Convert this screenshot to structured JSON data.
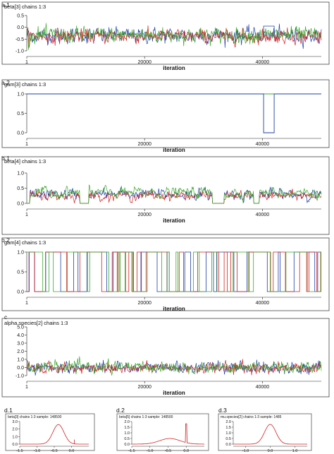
{
  "chart_data": [
    {
      "panel": "a.1",
      "type": "line",
      "title": "beta[3] chains 1:3",
      "xlabel": "iteration",
      "xlim": [
        0,
        50000
      ],
      "x_ticks": [
        1,
        20000,
        40000
      ],
      "ylim": [
        -1.0,
        0.5
      ],
      "y_ticks": [
        0.5,
        0.0,
        -0.5,
        -1.0
      ],
      "y_tick_labels": [
        "0.5",
        "0.0",
        "-0.5",
        "-1.0"
      ],
      "series": [
        {
          "color": "#1f3fa8",
          "center": -0.35,
          "spread": 0.22
        },
        {
          "color": "#d42020",
          "center": -0.38,
          "spread": 0.2
        },
        {
          "color": "#3aa82a",
          "center": -0.33,
          "spread": 0.22
        }
      ]
    },
    {
      "panel": "a.2",
      "type": "line",
      "title": "gam[3] chains 1:3",
      "xlabel": "iteration",
      "xlim": [
        0,
        50000
      ],
      "x_ticks": [
        1,
        20000,
        40000
      ],
      "ylim": [
        0.0,
        1.0
      ],
      "y_ticks": [
        1.0,
        0.5,
        0.0
      ],
      "y_tick_labels": [
        "1.0",
        "0.5",
        "0.0"
      ],
      "series": [
        {
          "color": "#3aa82a",
          "description": "constant at 1",
          "segments": [
            [
              1,
              50000,
              1
            ]
          ]
        },
        {
          "color": "#1f3fa8",
          "description": "mostly 1, drops to 0 briefly",
          "segments": [
            [
              1,
              40200,
              1
            ],
            [
              40200,
              42000,
              0
            ],
            [
              42000,
              50000,
              1
            ]
          ]
        }
      ]
    },
    {
      "panel": "b.1",
      "type": "line",
      "title": "beta[4] chains 1:3",
      "xlabel": "iteration",
      "xlim": [
        0,
        50000
      ],
      "x_ticks": [
        1,
        20000,
        40000
      ],
      "ylim": [
        0.0,
        1.0
      ],
      "y_ticks": [
        1.0,
        0.5,
        0.0
      ],
      "y_tick_labels": [
        "1.0",
        "0.5",
        "0.0"
      ],
      "active_ranges": [
        [
          500,
          9000
        ],
        [
          10500,
          31500
        ],
        [
          33500,
          38500
        ],
        [
          39500,
          50000
        ]
      ],
      "series": [
        {
          "color": "#1f3fa8",
          "center": 0.3,
          "spread": 0.18
        },
        {
          "color": "#d42020",
          "center": 0.25,
          "spread": 0.15
        },
        {
          "color": "#3aa82a",
          "center": 0.35,
          "spread": 0.18
        }
      ]
    },
    {
      "panel": "b.2",
      "type": "line",
      "title": "gam[4] chains 1:3",
      "xlabel": "iteration",
      "xlim": [
        0,
        50000
      ],
      "x_ticks": [
        1,
        20000,
        40000
      ],
      "ylim": [
        0.0,
        1.0
      ],
      "y_ticks": [
        1.0,
        0.5,
        0.0
      ],
      "y_tick_labels": [
        "1.0",
        "0.5",
        "0.0"
      ],
      "series": [
        {
          "color": "#1f3fa8"
        },
        {
          "color": "#d42020"
        },
        {
          "color": "#3aa82a"
        }
      ]
    },
    {
      "panel": "c",
      "type": "line",
      "title": "alpha.species[2] chains 1:3",
      "xlabel": "iteration",
      "xlim": [
        0,
        50000
      ],
      "x_ticks": [
        1,
        20000,
        40000
      ],
      "ylim": [
        -1.0,
        5.0
      ],
      "y_ticks": [
        5.0,
        4.0,
        3.0,
        2.0,
        1.0,
        0.0,
        -1.0
      ],
      "y_tick_labels": [
        "5.0",
        "4.0",
        "3.0",
        "2.0",
        "1.0",
        "0.0",
        "-1.0"
      ],
      "series": [
        {
          "color": "#1f3fa8",
          "center": 0.0,
          "spread": 0.45
        },
        {
          "color": "#d42020",
          "center": -0.05,
          "spread": 0.45
        },
        {
          "color": "#3aa82a",
          "center": 0.05,
          "spread": 0.45
        }
      ]
    },
    {
      "panel": "d.1",
      "type": "line",
      "title": "beta[3] chains 1:3 sample: 148500",
      "xlim": [
        -1.5,
        0.5
      ],
      "x_ticks": [
        -1.5,
        -1.0,
        -0.5,
        0.0
      ],
      "x_tick_labels": [
        "-1.5",
        "-1.0",
        "-0.5",
        "0.0"
      ],
      "ylim": [
        0.0,
        3.0
      ],
      "y_ticks": [
        3.0,
        2.0,
        1.0,
        0.0
      ],
      "y_tick_labels": [
        "3.0",
        "2.0",
        "1.0",
        "0.0"
      ],
      "density": {
        "mean": -0.38,
        "sd": 0.16,
        "peak": 2.6
      }
    },
    {
      "panel": "d.2",
      "type": "line",
      "title": "beta[5] chains 1:3 sample: 148500",
      "xlim": [
        -1.5,
        0.5
      ],
      "x_ticks": [
        -1.5,
        -1.0,
        -0.5,
        0.0
      ],
      "x_tick_labels": [
        "-1.5",
        "-1.0",
        "-0.5",
        "0.0"
      ],
      "ylim": [
        0.0,
        2.0
      ],
      "y_ticks": [
        2.0,
        1.5,
        1.0,
        0.5,
        0.0
      ],
      "y_tick_labels": [
        "2.0",
        "1.5",
        "1.0",
        "0.5",
        "0.0"
      ],
      "density": {
        "mean": -0.45,
        "sd": 0.28,
        "peak": 0.5,
        "spike_at": 0.0,
        "spike_height": 1.8
      }
    },
    {
      "panel": "d.3",
      "type": "line",
      "title": "mu.species[2] chains 1:3 sample: 1485",
      "xlim": [
        -1.5,
        1.5
      ],
      "x_ticks": [
        -1.0,
        0.0,
        1.0
      ],
      "x_tick_labels": [
        "-1.0",
        "0.0",
        "1.0"
      ],
      "ylim": [
        0.0,
        2.0
      ],
      "y_ticks": [
        2.0,
        1.5,
        1.0,
        0.5,
        0.0
      ],
      "y_tick_labels": [
        "2.0",
        "1.5",
        "1.0",
        "0.5",
        "0.0"
      ],
      "density": {
        "mean": 0.0,
        "sd": 0.23,
        "peak": 1.75
      }
    }
  ]
}
